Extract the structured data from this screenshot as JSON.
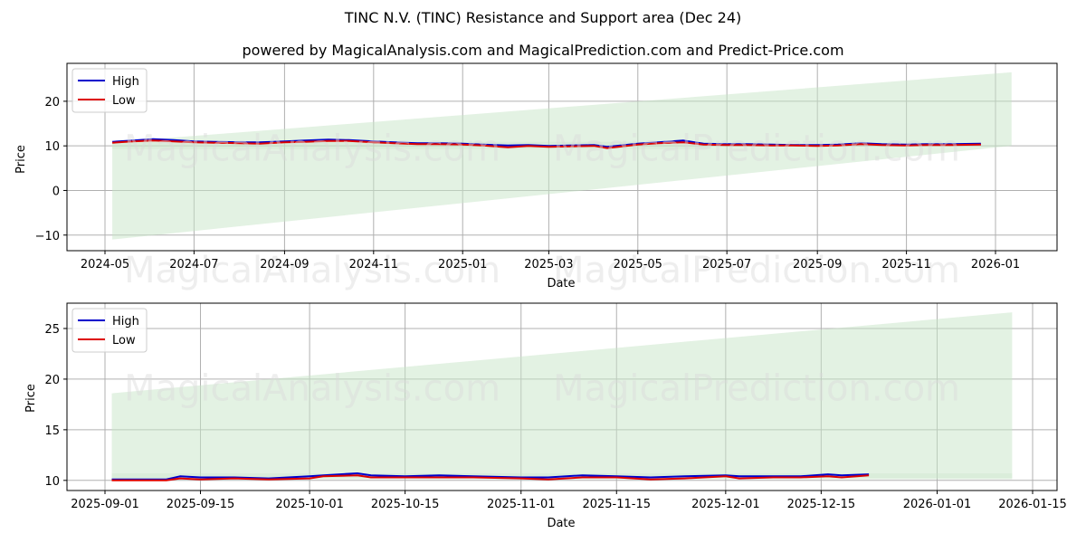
{
  "header": {
    "title": "TINC N.V. (TINC) Resistance and Support area (Dec 24)",
    "subtitle": "powered by MagicalAnalysis.com and MagicalPrediction.com and Predict-Price.com"
  },
  "watermarks": [
    "MagicalAnalysis.com",
    "MagicalPrediction.com"
  ],
  "colors": {
    "high": "#0000cc",
    "low": "#dd0000",
    "band": "#c8e6c8",
    "grid": "#b0b0b0"
  },
  "chart_data": [
    {
      "type": "line",
      "title": "",
      "xlabel": "Date",
      "ylabel": "Price",
      "ylim": [
        -13.5,
        28.5
      ],
      "grid": true,
      "legend": {
        "position": "upper left",
        "entries": [
          "High",
          "Low"
        ]
      },
      "x_ticks": [
        "2024-05",
        "2024-07",
        "2024-09",
        "2024-11",
        "2025-01",
        "2025-03",
        "2025-05",
        "2025-07",
        "2025-09",
        "2025-11",
        "2026-01"
      ],
      "y_ticks": [
        "20",
        "10",
        "0",
        "−10"
      ],
      "x": [
        "2024-05-06",
        "2024-05-20",
        "2024-06-03",
        "2024-06-17",
        "2024-07-01",
        "2024-07-15",
        "2024-08-01",
        "2024-08-15",
        "2024-09-01",
        "2024-09-15",
        "2024-10-01",
        "2024-10-15",
        "2024-11-01",
        "2024-11-15",
        "2024-12-01",
        "2024-12-15",
        "2025-01-01",
        "2025-01-15",
        "2025-02-01",
        "2025-02-15",
        "2025-03-01",
        "2025-03-15",
        "2025-04-01",
        "2025-04-10",
        "2025-05-01",
        "2025-05-15",
        "2025-06-01",
        "2025-06-15",
        "2025-07-01",
        "2025-07-15",
        "2025-08-01",
        "2025-08-15",
        "2025-09-01",
        "2025-09-15",
        "2025-10-01",
        "2025-10-15",
        "2025-11-01",
        "2025-11-15",
        "2025-12-01",
        "2025-12-22"
      ],
      "series": [
        {
          "name": "High",
          "values": [
            10.9,
            11.2,
            11.5,
            11.3,
            11.0,
            10.9,
            10.8,
            10.8,
            11.0,
            11.2,
            11.4,
            11.3,
            11.0,
            10.8,
            10.6,
            10.6,
            10.5,
            10.3,
            10.1,
            10.2,
            10.0,
            10.1,
            10.2,
            9.8,
            10.5,
            10.8,
            11.2,
            10.5,
            10.4,
            10.4,
            10.3,
            10.2,
            10.2,
            10.3,
            10.6,
            10.4,
            10.3,
            10.4,
            10.4,
            10.5
          ]
        },
        {
          "name": "Low",
          "values": [
            10.7,
            11.0,
            11.2,
            11.0,
            10.8,
            10.7,
            10.6,
            10.5,
            10.8,
            10.9,
            11.1,
            11.1,
            10.8,
            10.6,
            10.4,
            10.4,
            10.3,
            10.1,
            9.7,
            10.0,
            9.8,
            9.9,
            10.0,
            9.5,
            10.3,
            10.6,
            10.8,
            10.3,
            10.2,
            10.2,
            10.1,
            10.1,
            10.0,
            10.1,
            10.4,
            10.2,
            10.1,
            10.2,
            10.2,
            10.3
          ]
        }
      ],
      "bands": [
        {
          "name": "resistance-support-area",
          "x_start": "2024-05-06",
          "x_end": "2026-01-12",
          "upper_start": 10.8,
          "upper_end": 26.5,
          "lower_start": -11.0,
          "lower_end": 10.0
        },
        {
          "name": "narrow-support-band",
          "x_start": "2024-05-06",
          "x_end": "2025-06-20",
          "upper_start": 10.9,
          "upper_end": 10.9,
          "lower_start": 9.3,
          "lower_end": 9.3
        }
      ]
    },
    {
      "type": "line",
      "title": "",
      "xlabel": "Date",
      "ylabel": "Price",
      "ylim": [
        9.0,
        27.5
      ],
      "grid": true,
      "legend": {
        "position": "upper left",
        "entries": [
          "High",
          "Low"
        ]
      },
      "x_ticks": [
        "2025-09-01",
        "2025-09-15",
        "2025-10-01",
        "2025-10-15",
        "2025-11-01",
        "2025-11-15",
        "2025-12-01",
        "2025-12-15",
        "2026-01-01",
        "2026-01-15"
      ],
      "y_ticks": [
        "25",
        "20",
        "15",
        "10"
      ],
      "x": [
        "2025-09-02",
        "2025-09-05",
        "2025-09-10",
        "2025-09-12",
        "2025-09-15",
        "2025-09-20",
        "2025-09-25",
        "2025-10-01",
        "2025-10-03",
        "2025-10-08",
        "2025-10-10",
        "2025-10-15",
        "2025-10-20",
        "2025-10-25",
        "2025-11-01",
        "2025-11-05",
        "2025-11-10",
        "2025-11-15",
        "2025-11-20",
        "2025-11-25",
        "2025-12-01",
        "2025-12-03",
        "2025-12-08",
        "2025-12-12",
        "2025-12-16",
        "2025-12-18",
        "2025-12-22"
      ],
      "series": [
        {
          "name": "High",
          "values": [
            10.1,
            10.1,
            10.1,
            10.4,
            10.3,
            10.3,
            10.2,
            10.4,
            10.5,
            10.7,
            10.5,
            10.4,
            10.5,
            10.4,
            10.3,
            10.3,
            10.5,
            10.4,
            10.3,
            10.4,
            10.5,
            10.4,
            10.4,
            10.4,
            10.6,
            10.5,
            10.6
          ]
        },
        {
          "name": "Low",
          "values": [
            10.0,
            10.0,
            10.0,
            10.2,
            10.1,
            10.2,
            10.1,
            10.2,
            10.4,
            10.5,
            10.3,
            10.3,
            10.3,
            10.3,
            10.2,
            10.1,
            10.3,
            10.3,
            10.1,
            10.2,
            10.4,
            10.2,
            10.3,
            10.3,
            10.4,
            10.3,
            10.5
          ]
        }
      ],
      "bands": [
        {
          "name": "resistance-support-area",
          "x_start": "2025-09-02",
          "x_end": "2026-01-12",
          "upper_start": 18.6,
          "upper_end": 26.6,
          "lower_start": 10.2,
          "lower_end": 10.2
        },
        {
          "name": "narrow-support-band",
          "x_start": "2025-09-02",
          "x_end": "2026-01-12",
          "upper_start": 10.7,
          "upper_end": 10.7,
          "lower_start": 10.1,
          "lower_end": 10.1
        }
      ]
    }
  ]
}
